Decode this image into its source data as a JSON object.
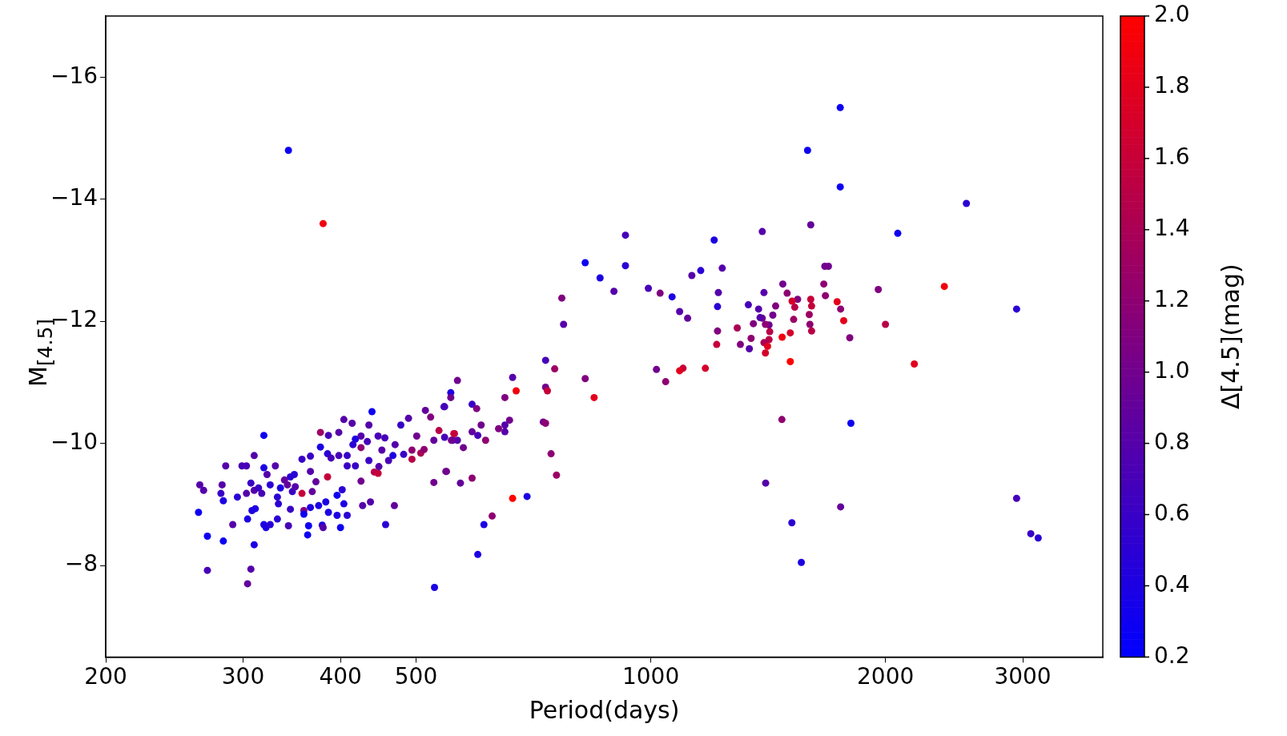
{
  "chart_data": {
    "type": "scatter",
    "xlabel": "Period(days)",
    "ylabel": "M$_{[4.5]}$",
    "clabel": "Δ[4.5](mag)",
    "log": "x",
    "grid": false,
    "legend": false,
    "marker": "circle",
    "xlim": [
      200,
      3800
    ],
    "xticks": [
      200,
      300,
      400,
      500,
      1000,
      2000,
      3000
    ],
    "ylim": [
      -6.5,
      -17
    ],
    "yticks": [
      {
        "value": -16,
        "label": "−16"
      },
      {
        "value": -14,
        "label": "−14"
      },
      {
        "value": -12,
        "label": "−12"
      },
      {
        "value": -10,
        "label": "−10"
      },
      {
        "value": -8,
        "label": "−8"
      }
    ],
    "clim": [
      0.2,
      2.0
    ],
    "cticks": [
      0.2,
      0.4,
      0.6,
      0.8,
      {
        "value": 1.0,
        "label": "1.0"
      },
      1.2,
      1.4,
      1.6,
      1.8,
      {
        "value": 2.0,
        "label": "2.0"
      }
    ],
    "x": [
      343,
      380,
      1750,
      1589,
      1750,
      2540,
      2074,
      1390,
      1604,
      1206,
      928,
      928,
      824,
      861,
      897,
      993,
      1028,
      1065,
      1089,
      1115,
      1129,
      1159,
      1235,
      1221,
      1218,
      2380,
      769,
      773,
      2946,
      1958,
      2000,
      2178,
      1806,
      2946,
      3072,
      3140,
      1752,
      1517,
      1560,
      1404,
      1473,
      1734,
      1768,
      1800,
      1672,
      1690,
      1667,
      1675,
      1604,
      1597,
      1608,
      1600,
      1608,
      1543,
      1530,
      1525,
      1510,
      1518,
      1477,
      1496,
      1418,
      1446,
      1434,
      1418,
      1403,
      1390,
      1381,
      1397,
      1375,
      1334,
      1354,
      1345,
      1338,
      1397,
      1403,
      1412,
      1474,
      1421,
      1510,
      1291,
      1303,
      1218,
      1215,
      1175,
      1100,
      1089,
      1017,
      1045,
      1752,
      733,
      753,
      824,
      846,
      665,
      672,
      650,
      733,
      737,
      728,
      733,
      745,
      757,
      659,
      650,
      650,
      638,
      614,
      600,
      606,
      590,
      575,
      590,
      598,
      565,
      554,
      554,
      544,
      560,
      544,
      557,
      565,
      547,
      570,
      590,
      665,
      694,
      626,
      611,
      600,
      528,
      263,
      270,
      270,
      283,
      264,
      267,
      281,
      282,
      283,
      285,
      291,
      295,
      299,
      303,
      303,
      304,
      307,
      307,
      304,
      308,
      310,
      310,
      311,
      310,
      314,
      317,
      319,
      319,
      322,
      319,
      321,
      325,
      330,
      325,
      332,
      333,
      332,
      335,
      339,
      342,
      345,
      343,
      345,
      349,
      347,
      350,
      357,
      359,
      359,
      357,
      364,
      363,
      366,
      366,
      366,
      368,
      372,
      377,
      377,
      375,
      379,
      380,
      385,
      385,
      386,
      383,
      386,
      396,
      396,
      400,
      404,
      404,
      402,
      398,
      398,
      408,
      408,
      414,
      418,
      425,
      427,
      425,
      435,
      437,
      439,
      433,
      442,
      447,
      448,
      452,
      457,
      467,
      469,
      470,
      478,
      482,
      489,
      494,
      494,
      501,
      507,
      512,
      514,
      522,
      527,
      527,
      535,
      543,
      546,
      555,
      559,
      425,
      447,
      456,
      418,
      435,
      461,
      389,
      408,
      415
    ],
    "values": [
      -14.8,
      -13.6,
      -15.5,
      -14.8,
      -14.2,
      -13.93,
      -13.44,
      -13.47,
      -13.58,
      -13.33,
      -13.41,
      -12.91,
      -12.96,
      -12.71,
      -12.49,
      -12.54,
      -12.46,
      -12.4,
      -12.16,
      -12.05,
      -12.75,
      -12.83,
      -12.87,
      -12.47,
      -12.24,
      -12.57,
      -12.38,
      -11.95,
      -12.2,
      -12.52,
      -11.95,
      -11.3,
      -10.33,
      -9.1,
      -8.52,
      -8.45,
      -8.96,
      -8.7,
      -8.05,
      -9.35,
      -10.39,
      -12.32,
      -12.01,
      -11.73,
      -12.9,
      -12.9,
      -12.61,
      -12.42,
      -12.36,
      -12.11,
      -12.25,
      -11.95,
      -11.84,
      -12.36,
      -12.23,
      -12.03,
      -11.81,
      -12.33,
      -12.61,
      -12.46,
      -11.7,
      -12.25,
      -12.1,
      -11.94,
      -11.95,
      -12.05,
      -12.06,
      -12.47,
      -12.2,
      -12.27,
      -11.96,
      -11.72,
      -11.55,
      -11.65,
      -11.48,
      -11.59,
      -11.74,
      -11.83,
      -11.34,
      -11.89,
      -11.62,
      -11.84,
      -11.62,
      -11.23,
      -11.23,
      -11.19,
      -11.21,
      -11.01,
      -12.2,
      -11.36,
      -11.22,
      -11.06,
      -10.75,
      -11.08,
      -10.86,
      -10.75,
      -10.92,
      -10.86,
      -10.35,
      -10.33,
      -9.83,
      -9.48,
      -10.38,
      -10.3,
      -10.19,
      -10.24,
      -10.05,
      -10.13,
      -10.3,
      -10.19,
      -9.93,
      -10.64,
      -10.57,
      -11.03,
      -10.83,
      -10.75,
      -10.6,
      -10.16,
      -10.1,
      -10.05,
      -10.05,
      -9.54,
      -9.35,
      -9.43,
      -9.1,
      -9.13,
      -8.81,
      -8.67,
      -8.18,
      -7.64,
      -8.87,
      -8.48,
      -7.92,
      -8.4,
      -9.32,
      -9.23,
      -9.18,
      -9.32,
      -9.06,
      -9.63,
      -8.67,
      -9.12,
      -9.63,
      -9.63,
      -9.18,
      -8.76,
      -9.35,
      -7.94,
      -7.7,
      -8.9,
      -8.34,
      -9.8,
      -8.93,
      -9.23,
      -9.27,
      -9.18,
      -10.13,
      -9.6,
      -9.49,
      -8.67,
      -8.62,
      -8.67,
      -9.63,
      -9.32,
      -9.12,
      -9.01,
      -8.76,
      -9.27,
      -9.4,
      -9.32,
      -8.92,
      -8.65,
      -9.45,
      -9.49,
      -9.21,
      -9.29,
      -9.18,
      -8.9,
      -8.84,
      -9.74,
      -8.65,
      -8.5,
      -8.95,
      -9.79,
      -9.54,
      -9.21,
      -9.37,
      -10.18,
      -9.94,
      -8.98,
      -8.66,
      -8.62,
      -9.45,
      -9.83,
      -10.13,
      -9.04,
      -8.87,
      -9.15,
      -8.82,
      -8.62,
      -9.01,
      -10.39,
      -9.24,
      -9.8,
      -10.18,
      -8.82,
      -9.63,
      -10.33,
      -10.07,
      -9.38,
      -8.98,
      -9.93,
      -10.3,
      -9.04,
      -10.52,
      -10.03,
      -9.53,
      -9.51,
      -9.62,
      -9.89,
      -8.67,
      -9.8,
      -8.98,
      -9.98,
      -10.3,
      -9.82,
      -10.41,
      -9.74,
      -9.89,
      -10.12,
      -9.84,
      -9.9,
      -10.54,
      -10.43,
      -9.36,
      -10.05,
      -10.21,
      -10.6,
      -9.54,
      -10.05,
      -10.16,
      -10.12,
      -10.12,
      -10.09,
      -9.63,
      -9.72,
      -9.72,
      -9.76,
      -9.8,
      -9.98
    ],
    "cvalues": [
      0.3,
      1.9,
      0.3,
      0.3,
      0.3,
      0.5,
      0.3,
      0.8,
      0.9,
      0.4,
      0.7,
      0.5,
      0.3,
      0.4,
      0.8,
      0.7,
      1.1,
      0.4,
      0.8,
      0.9,
      0.8,
      0.5,
      0.8,
      0.8,
      0.5,
      1.9,
      1.1,
      0.8,
      0.5,
      1.1,
      1.5,
      1.8,
      0.3,
      0.7,
      0.6,
      0.5,
      0.9,
      0.5,
      0.4,
      0.8,
      1.2,
      1.8,
      1.8,
      1.1,
      1.0,
      1.0,
      1.2,
      1.2,
      1.6,
      1.3,
      1.6,
      1.2,
      1.5,
      1.1,
      1.5,
      1.3,
      1.7,
      1.7,
      1.0,
      1.2,
      1.5,
      1.1,
      1.0,
      1.0,
      1.2,
      1.0,
      0.8,
      0.8,
      0.8,
      0.7,
      1.1,
      1.2,
      0.8,
      1.4,
      1.7,
      1.8,
      1.9,
      1.5,
      2.0,
      1.4,
      1.1,
      1.1,
      1.6,
      1.7,
      1.6,
      1.8,
      1.0,
      1.2,
      1.2,
      0.7,
      1.3,
      1.1,
      1.8,
      0.8,
      1.9,
      1.1,
      1.0,
      1.6,
      1.0,
      1.2,
      1.2,
      1.3,
      1.0,
      0.8,
      0.8,
      1.1,
      1.2,
      0.7,
      1.0,
      0.9,
      1.0,
      0.6,
      1.1,
      1.0,
      0.4,
      1.0,
      0.7,
      1.5,
      0.7,
      0.8,
      0.8,
      1.0,
      0.9,
      1.2,
      2.0,
      0.4,
      1.2,
      0.4,
      0.4,
      0.4,
      0.3,
      0.3,
      0.7,
      0.3,
      0.8,
      0.8,
      0.6,
      0.8,
      0.4,
      0.8,
      0.8,
      0.5,
      0.7,
      0.7,
      0.8,
      0.4,
      0.6,
      0.8,
      0.9,
      0.4,
      0.4,
      0.8,
      0.4,
      0.8,
      0.6,
      0.7,
      0.3,
      0.4,
      0.8,
      0.4,
      0.4,
      0.5,
      0.8,
      0.5,
      0.5,
      0.5,
      0.5,
      0.4,
      0.9,
      0.9,
      0.6,
      0.7,
      0.5,
      0.5,
      0.6,
      0.8,
      1.6,
      1.1,
      0.3,
      0.6,
      0.3,
      0.3,
      0.4,
      0.6,
      0.8,
      0.9,
      0.9,
      1.3,
      0.4,
      0.4,
      0.4,
      0.8,
      1.6,
      0.5,
      0.7,
      0.4,
      0.4,
      0.3,
      0.4,
      0.3,
      0.4,
      0.8,
      0.5,
      0.7,
      0.8,
      0.5,
      0.6,
      0.8,
      0.4,
      1.0,
      0.8,
      1.2,
      0.8,
      0.8,
      0.3,
      0.7,
      1.5,
      1.6,
      0.8,
      0.8,
      0.5,
      0.4,
      0.9,
      0.8,
      0.6,
      0.6,
      0.8,
      1.5,
      1.2,
      1.0,
      1.4,
      1.2,
      0.9,
      1.1,
      1.0,
      0.9,
      1.5,
      0.7,
      1.0,
      1.0,
      1.6,
      0.8,
      0.7,
      0.7,
      0.6,
      0.6,
      0.7,
      0.7,
      0.6,
      0.5
    ]
  }
}
